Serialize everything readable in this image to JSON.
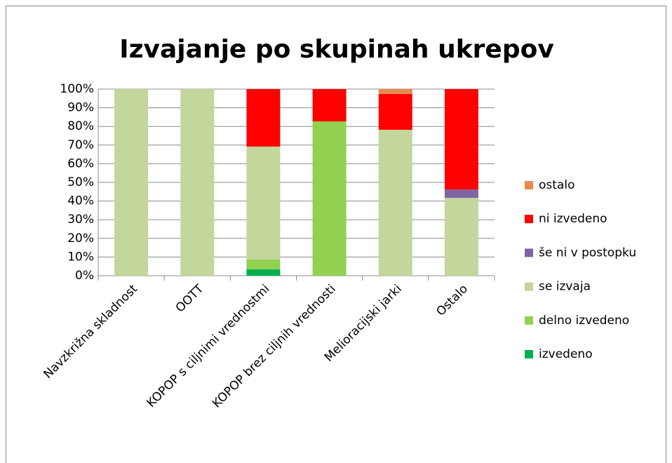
{
  "chart_data": {
    "type": "stacked_bar",
    "title": "Izvajanje po skupinah ukrepov",
    "categories": [
      "Navzkrižna skladnost",
      "OOTT",
      "KOPOP s ciljnimi vrednostmi",
      "KOPOP brez ciljnih vrednosti",
      "Melioracijski jarki",
      "Ostalo"
    ],
    "series": [
      {
        "name": "izvedeno",
        "color": "#00b050",
        "values": [
          0,
          0,
          3.4,
          0,
          0,
          0
        ]
      },
      {
        "name": "delno izvedeno",
        "color": "#92d050",
        "values": [
          0,
          0,
          5.3,
          82.7,
          0,
          0
        ]
      },
      {
        "name": "se izvaja",
        "color": "#c3d69b",
        "values": [
          100,
          100,
          60.5,
          0,
          78.2,
          41.7
        ]
      },
      {
        "name": "še ni v postopku",
        "color": "#8064a2",
        "values": [
          0,
          0,
          0,
          0,
          0,
          4.5
        ]
      },
      {
        "name": "ni izvedeno",
        "color": "#ff0000",
        "values": [
          0,
          0,
          30.8,
          17.3,
          19.2,
          53.8
        ]
      },
      {
        "name": "ostalo",
        "color": "#e7894d",
        "values": [
          0,
          0,
          0,
          0,
          2.6,
          0
        ]
      }
    ],
    "ylim": [
      0,
      100
    ],
    "yticks": [
      {
        "value": 0,
        "label": "0%"
      },
      {
        "value": 10,
        "label": "10%"
      },
      {
        "value": 20,
        "label": "20%"
      },
      {
        "value": 30,
        "label": "30%"
      },
      {
        "value": 40,
        "label": "40%"
      },
      {
        "value": 50,
        "label": "50%"
      },
      {
        "value": 60,
        "label": "60%"
      },
      {
        "value": 70,
        "label": "70%"
      },
      {
        "value": 80,
        "label": "80%"
      },
      {
        "value": 90,
        "label": "90%"
      },
      {
        "value": 100,
        "label": "100%"
      }
    ],
    "grid": true,
    "legend": "right"
  }
}
